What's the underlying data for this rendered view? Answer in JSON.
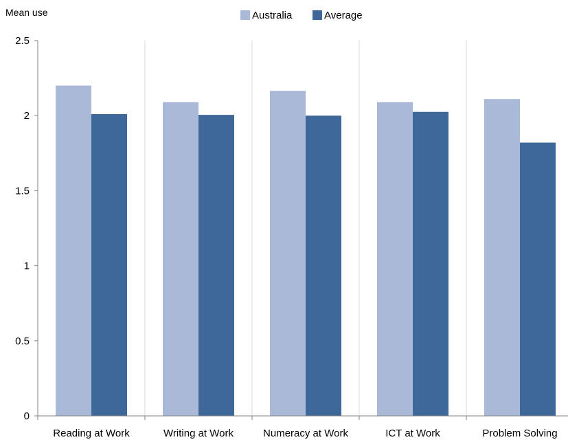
{
  "chart_data": {
    "type": "bar",
    "ylabel": "Mean use",
    "ylim": [
      0,
      2.5
    ],
    "yticks": [
      "0",
      "0.5",
      "1",
      "1.5",
      "2",
      "2.5"
    ],
    "categories": [
      "Reading at Work",
      "Writing at Work",
      "Numeracy at Work",
      "ICT at Work",
      "Problem Solving"
    ],
    "series": [
      {
        "name": "Australia",
        "color": "#aab9d8",
        "values": [
          2.2,
          2.09,
          2.165,
          2.09,
          2.11
        ]
      },
      {
        "name": "Average",
        "color": "#3f689a",
        "values": [
          2.01,
          2.005,
          2.0,
          2.025,
          1.82
        ]
      }
    ],
    "grid": "vertical",
    "legend": "top-center"
  }
}
